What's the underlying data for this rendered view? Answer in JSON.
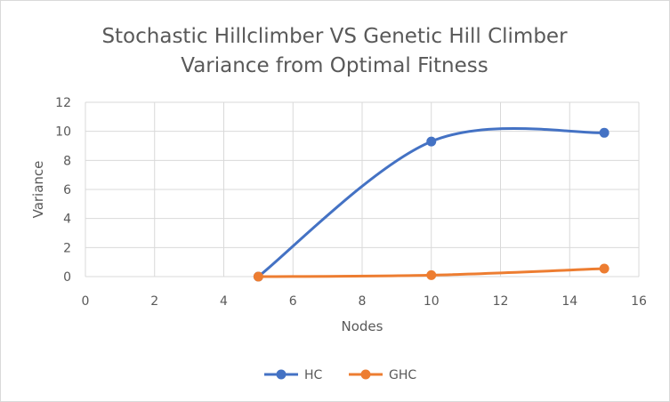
{
  "chart_data": {
    "type": "scatter",
    "title_lines": [
      "Stochastic Hillclimber VS Genetic Hill Climber",
      "Variance from Optimal Fitness"
    ],
    "xlabel": "Nodes",
    "ylabel": "Variance",
    "xlim": [
      0,
      16
    ],
    "ylim": [
      0,
      12
    ],
    "x_ticks": [
      "0",
      "2",
      "4",
      "6",
      "8",
      "10",
      "12",
      "14",
      "16"
    ],
    "y_ticks": [
      "0",
      "2",
      "4",
      "6",
      "8",
      "10",
      "12"
    ],
    "grid": true,
    "smooth_lines": true,
    "legend_position": "bottom",
    "series": [
      {
        "name": "HC",
        "color": "#4472c4",
        "x": [
          5,
          10,
          15
        ],
        "y": [
          0,
          9.3,
          9.9
        ]
      },
      {
        "name": "GHC",
        "color": "#ed7d31",
        "x": [
          5,
          10,
          15
        ],
        "y": [
          0,
          0.1,
          0.55
        ]
      }
    ]
  }
}
